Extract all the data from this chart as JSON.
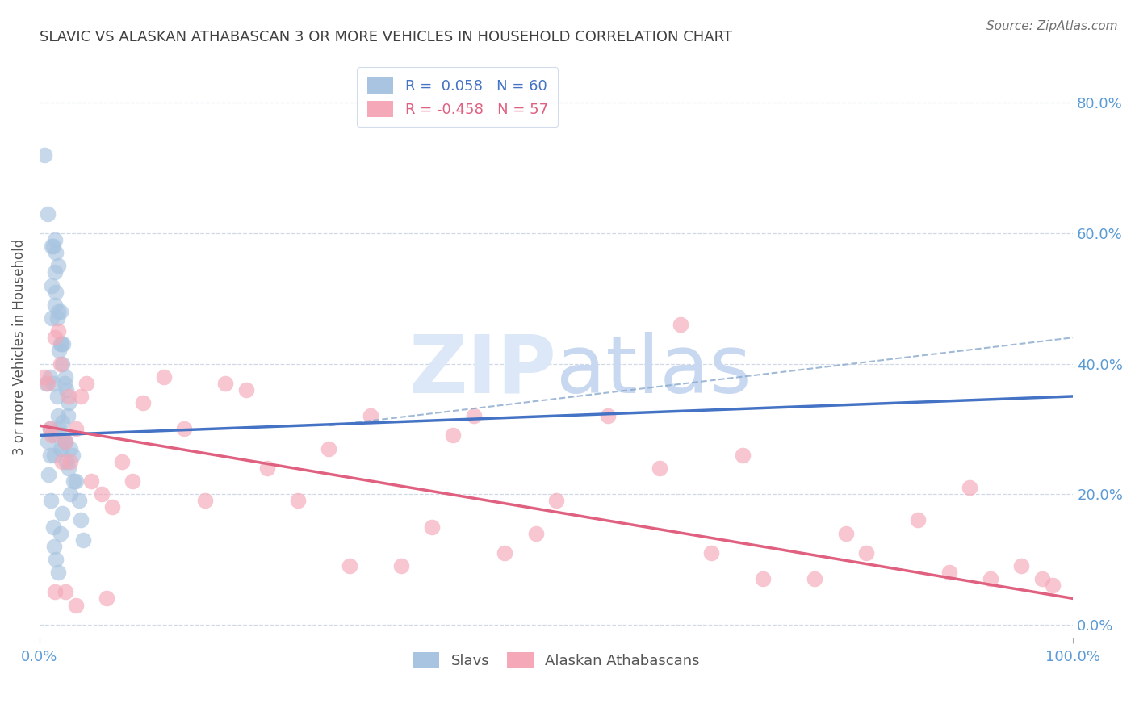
{
  "title": "SLAVIC VS ALASKAN ATHABASCAN 3 OR MORE VEHICLES IN HOUSEHOLD CORRELATION CHART",
  "source": "Source: ZipAtlas.com",
  "ylabel": "3 or more Vehicles in Household",
  "ytick_values": [
    0.0,
    0.2,
    0.4,
    0.6,
    0.8
  ],
  "xlim": [
    0.0,
    1.0
  ],
  "ylim": [
    -0.02,
    0.87
  ],
  "legend_slavs_R": "0.058",
  "legend_slavs_N": "60",
  "legend_ath_R": "-0.458",
  "legend_ath_N": "57",
  "slavs_color": "#a8c4e0",
  "ath_color": "#f4a8b8",
  "slavs_line_color": "#4472c4",
  "ath_line_color": "#e06080",
  "dashed_line_color": "#88a8cc",
  "watermark_zip_color": "#dce8f8",
  "watermark_atlas_color": "#c8d8f0",
  "title_color": "#404040",
  "axis_label_color": "#5b9bd5",
  "background_color": "#ffffff",
  "grid_color": "#d0d8e8",
  "slavs_x": [
    0.005,
    0.008,
    0.01,
    0.01,
    0.01,
    0.012,
    0.012,
    0.012,
    0.013,
    0.013,
    0.014,
    0.015,
    0.015,
    0.015,
    0.015,
    0.016,
    0.016,
    0.017,
    0.017,
    0.018,
    0.018,
    0.018,
    0.019,
    0.019,
    0.02,
    0.02,
    0.02,
    0.021,
    0.021,
    0.022,
    0.022,
    0.023,
    0.023,
    0.024,
    0.024,
    0.025,
    0.025,
    0.026,
    0.026,
    0.027,
    0.028,
    0.028,
    0.03,
    0.03,
    0.032,
    0.033,
    0.035,
    0.038,
    0.04,
    0.042,
    0.006,
    0.008,
    0.009,
    0.011,
    0.013,
    0.014,
    0.016,
    0.018,
    0.02,
    0.022
  ],
  "slavs_y": [
    0.72,
    0.63,
    0.38,
    0.3,
    0.26,
    0.58,
    0.52,
    0.47,
    0.58,
    0.37,
    0.26,
    0.59,
    0.54,
    0.49,
    0.29,
    0.57,
    0.51,
    0.47,
    0.35,
    0.55,
    0.48,
    0.32,
    0.42,
    0.3,
    0.48,
    0.43,
    0.27,
    0.43,
    0.27,
    0.4,
    0.31,
    0.43,
    0.29,
    0.37,
    0.28,
    0.38,
    0.28,
    0.36,
    0.25,
    0.32,
    0.34,
    0.24,
    0.27,
    0.2,
    0.26,
    0.22,
    0.22,
    0.19,
    0.16,
    0.13,
    0.37,
    0.28,
    0.23,
    0.19,
    0.15,
    0.12,
    0.1,
    0.08,
    0.14,
    0.17
  ],
  "ath_x": [
    0.005,
    0.008,
    0.01,
    0.012,
    0.015,
    0.018,
    0.02,
    0.022,
    0.025,
    0.028,
    0.03,
    0.035,
    0.04,
    0.045,
    0.05,
    0.06,
    0.07,
    0.08,
    0.09,
    0.1,
    0.12,
    0.14,
    0.16,
    0.18,
    0.2,
    0.22,
    0.25,
    0.28,
    0.3,
    0.32,
    0.35,
    0.38,
    0.4,
    0.42,
    0.45,
    0.5,
    0.55,
    0.6,
    0.62,
    0.65,
    0.68,
    0.7,
    0.75,
    0.78,
    0.8,
    0.85,
    0.88,
    0.9,
    0.92,
    0.95,
    0.97,
    0.98,
    0.015,
    0.025,
    0.035,
    0.065,
    0.48
  ],
  "ath_y": [
    0.38,
    0.37,
    0.3,
    0.29,
    0.44,
    0.45,
    0.4,
    0.25,
    0.28,
    0.35,
    0.25,
    0.3,
    0.35,
    0.37,
    0.22,
    0.2,
    0.18,
    0.25,
    0.22,
    0.34,
    0.38,
    0.3,
    0.19,
    0.37,
    0.36,
    0.24,
    0.19,
    0.27,
    0.09,
    0.32,
    0.09,
    0.15,
    0.29,
    0.32,
    0.11,
    0.19,
    0.32,
    0.24,
    0.46,
    0.11,
    0.26,
    0.07,
    0.07,
    0.14,
    0.11,
    0.16,
    0.08,
    0.21,
    0.07,
    0.09,
    0.07,
    0.06,
    0.05,
    0.05,
    0.03,
    0.04,
    0.14
  ],
  "slavs_line_x": [
    0.0,
    1.0
  ],
  "slavs_line_y": [
    0.29,
    0.35
  ],
  "ath_line_x": [
    0.0,
    1.0
  ],
  "ath_line_y": [
    0.305,
    0.04
  ],
  "dashed_line_x": [
    0.28,
    1.0
  ],
  "dashed_line_y": [
    0.305,
    0.44
  ]
}
